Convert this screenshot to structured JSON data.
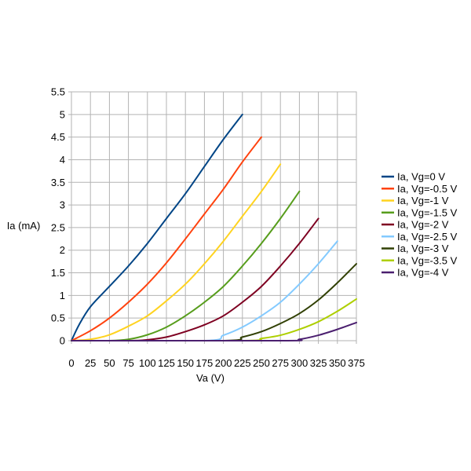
{
  "chart_data": {
    "type": "line",
    "title": "",
    "xlabel": "Va (V)",
    "ylabel": "Ia (mA)",
    "xlim": [
      0,
      375
    ],
    "ylim": [
      0,
      5.5
    ],
    "x_ticks": [
      "0",
      "25",
      "50",
      "75",
      "100",
      "125",
      "150",
      "175",
      "200",
      "225",
      "250",
      "275",
      "300",
      "325",
      "350",
      "375"
    ],
    "y_ticks": [
      "0",
      "0.5",
      "1",
      "1.5",
      "2",
      "2.5",
      "3",
      "3.5",
      "4",
      "4.5",
      "5",
      "5.5"
    ],
    "grid": true,
    "legend_position": "right",
    "series": [
      {
        "name": "Ia, Vg=0 V",
        "color": "#004586",
        "points": [
          [
            0,
            0
          ],
          [
            10,
            0.35
          ],
          [
            25,
            0.75
          ],
          [
            50,
            1.2
          ],
          [
            75,
            1.65
          ],
          [
            100,
            2.15
          ],
          [
            125,
            2.7
          ],
          [
            150,
            3.25
          ],
          [
            175,
            3.85
          ],
          [
            200,
            4.45
          ],
          [
            225,
            5.0
          ]
        ]
      },
      {
        "name": "Ia, Vg=-0.5 V",
        "color": "#ff420e",
        "points": [
          [
            0,
            0
          ],
          [
            25,
            0.22
          ],
          [
            50,
            0.5
          ],
          [
            75,
            0.85
          ],
          [
            100,
            1.25
          ],
          [
            125,
            1.72
          ],
          [
            150,
            2.25
          ],
          [
            175,
            2.8
          ],
          [
            200,
            3.35
          ],
          [
            225,
            3.95
          ],
          [
            250,
            4.5
          ]
        ]
      },
      {
        "name": "Ia, Vg=-1 V",
        "color": "#ffd320",
        "points": [
          [
            0,
            0
          ],
          [
            25,
            0.03
          ],
          [
            50,
            0.13
          ],
          [
            75,
            0.32
          ],
          [
            100,
            0.55
          ],
          [
            125,
            0.88
          ],
          [
            150,
            1.25
          ],
          [
            175,
            1.7
          ],
          [
            200,
            2.2
          ],
          [
            225,
            2.75
          ],
          [
            250,
            3.3
          ],
          [
            275,
            3.9
          ]
        ]
      },
      {
        "name": "Ia, Vg=-1.5 V",
        "color": "#579d1c",
        "points": [
          [
            0,
            0
          ],
          [
            50,
            0
          ],
          [
            75,
            0.03
          ],
          [
            100,
            0.13
          ],
          [
            125,
            0.3
          ],
          [
            150,
            0.55
          ],
          [
            175,
            0.85
          ],
          [
            200,
            1.2
          ],
          [
            225,
            1.65
          ],
          [
            250,
            2.15
          ],
          [
            275,
            2.7
          ],
          [
            300,
            3.3
          ]
        ]
      },
      {
        "name": "Ia, Vg=-2 V",
        "color": "#7e0021",
        "points": [
          [
            0,
            0
          ],
          [
            75,
            0
          ],
          [
            100,
            0.02
          ],
          [
            125,
            0.08
          ],
          [
            150,
            0.2
          ],
          [
            175,
            0.35
          ],
          [
            200,
            0.55
          ],
          [
            225,
            0.85
          ],
          [
            250,
            1.2
          ],
          [
            275,
            1.65
          ],
          [
            300,
            2.15
          ],
          [
            325,
            2.7
          ]
        ]
      },
      {
        "name": "Ia, Vg=-2.5 V",
        "color": "#83caff",
        "points": [
          [
            0,
            0
          ],
          [
            175,
            0
          ],
          [
            200,
            0.12
          ],
          [
            225,
            0.3
          ],
          [
            250,
            0.55
          ],
          [
            275,
            0.85
          ],
          [
            300,
            1.25
          ],
          [
            325,
            1.7
          ],
          [
            350,
            2.2
          ]
        ]
      },
      {
        "name": "Ia, Vg=-3 V",
        "color": "#314004",
        "points": [
          [
            0,
            0
          ],
          [
            200,
            0
          ],
          [
            225,
            0.08
          ],
          [
            250,
            0.2
          ],
          [
            275,
            0.38
          ],
          [
            300,
            0.6
          ],
          [
            325,
            0.9
          ],
          [
            350,
            1.28
          ],
          [
            375,
            1.7
          ]
        ]
      },
      {
        "name": "Ia, Vg=-3.5 V",
        "color": "#aecf00",
        "points": [
          [
            0,
            0
          ],
          [
            225,
            0
          ],
          [
            250,
            0.05
          ],
          [
            275,
            0.12
          ],
          [
            300,
            0.25
          ],
          [
            325,
            0.42
          ],
          [
            350,
            0.65
          ],
          [
            375,
            0.92
          ]
        ]
      },
      {
        "name": "Ia, Vg=-4 V",
        "color": "#4b1f6f",
        "points": [
          [
            0,
            0
          ],
          [
            275,
            0
          ],
          [
            300,
            0.03
          ],
          [
            325,
            0.12
          ],
          [
            350,
            0.25
          ],
          [
            375,
            0.4
          ]
        ]
      }
    ]
  }
}
